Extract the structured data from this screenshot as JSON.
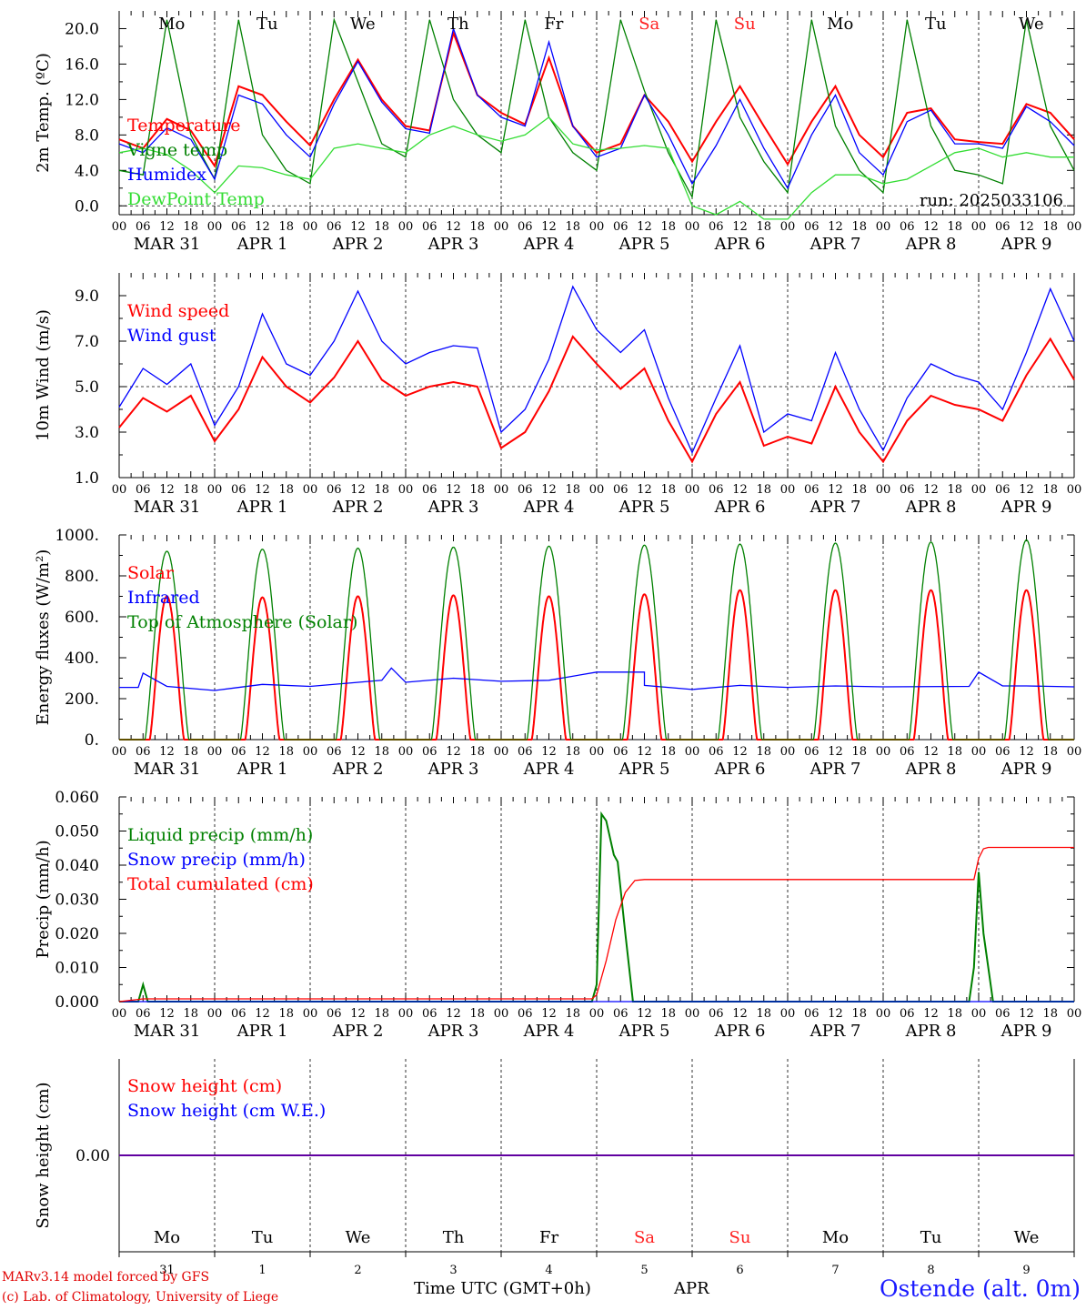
{
  "x_axis": {
    "hour_ticks": [
      "00",
      "06",
      "12",
      "18"
    ],
    "end_tick": "00",
    "date_labels": [
      "MAR 31",
      "APR 1",
      "APR 2",
      "APR 3",
      "APR 4",
      "APR 5",
      "APR 6",
      "APR 7",
      "APR 8",
      "APR 9"
    ],
    "weekdays": [
      "Mo",
      "Tu",
      "We",
      "Th",
      "Fr",
      "Sa",
      "Su",
      "Mo",
      "Tu",
      "We"
    ],
    "day_numbers": [
      "31",
      "1",
      "2",
      "3",
      "4",
      "5",
      "6",
      "7",
      "8",
      "9"
    ],
    "weekend_color": "#ff2020"
  },
  "footer": {
    "credit_line1": "MARv3.14 model forced by GFS",
    "credit_line2": "(c) Lab. of Climatology, University of Liege",
    "time_label": "Time UTC (GMT+0h)",
    "month_label": "APR",
    "station": "Ostende (alt. 0m)"
  },
  "chart_data": [
    {
      "type": "line",
      "ylabel": "2m Temp. (ºC)",
      "ylim": [
        -1,
        22
      ],
      "yticks": [
        0,
        4,
        8,
        12,
        16,
        20
      ],
      "ytick_labels": [
        "0.0",
        "4.0",
        "8.0",
        "12.0",
        "16.0",
        "20.0"
      ],
      "dashed_y": 0,
      "annotation": "run: 2025033106",
      "grid": "vertical dashed lines at day boundaries",
      "legend_position": "left",
      "x_days": [
        0,
        10
      ],
      "series": [
        {
          "name": "Temperature",
          "color": "#ff0000",
          "x": [
            0,
            0.25,
            0.5,
            0.75,
            1,
            1.25,
            1.5,
            1.75,
            2,
            2.25,
            2.5,
            2.75,
            3,
            3.25,
            3.5,
            3.75,
            4,
            4.25,
            4.5,
            4.75,
            5,
            5.25,
            5.5,
            5.75,
            6,
            6.25,
            6.5,
            6.75,
            7,
            7.25,
            7.5,
            7.75,
            8,
            8.25,
            8.5,
            8.75,
            9,
            9.25,
            9.5,
            9.75,
            10
          ],
          "y": [
            7.5,
            6.5,
            9.8,
            8.5,
            4.5,
            13.5,
            12.5,
            9.5,
            6.8,
            12,
            16.5,
            12,
            9,
            8.5,
            19.5,
            12.5,
            10.5,
            9.2,
            16.7,
            9,
            6,
            7,
            12.5,
            9.5,
            5,
            9.5,
            13.5,
            9,
            4.7,
            9.5,
            13.5,
            8,
            5.5,
            10.5,
            11,
            7.5,
            7.2,
            7,
            11.5,
            10.5,
            7.5
          ]
        },
        {
          "name": "Vigne temp",
          "color": "#008000",
          "x": [
            0,
            0.25,
            0.5,
            0.75,
            1,
            1.25,
            1.5,
            1.75,
            2,
            2.25,
            2.5,
            2.75,
            3,
            3.25,
            3.5,
            3.75,
            4,
            4.25,
            4.5,
            4.75,
            5,
            5.25,
            5.5,
            5.75,
            6,
            6.25,
            6.5,
            6.75,
            7,
            7.25,
            7.5,
            7.75,
            8,
            8.25,
            8.5,
            8.75,
            9,
            9.25,
            9.5,
            9.75,
            10
          ],
          "y": [
            4,
            3.5,
            21,
            8,
            3,
            21,
            8,
            4,
            2.5,
            21,
            14,
            7,
            5.5,
            21,
            12,
            8,
            6,
            21,
            10,
            6,
            4,
            21,
            13,
            6,
            1,
            21,
            10,
            5,
            1.5,
            21,
            9,
            4,
            1.5,
            21,
            9,
            4,
            3.5,
            2.5,
            21,
            9,
            4
          ]
        },
        {
          "name": "Humidex",
          "color": "#0000ff",
          "x": [
            0,
            0.25,
            0.5,
            0.75,
            1,
            1.25,
            1.5,
            1.75,
            2,
            2.25,
            2.5,
            2.75,
            3,
            3.25,
            3.5,
            3.75,
            4,
            4.25,
            4.5,
            4.75,
            5,
            5.25,
            5.5,
            5.75,
            6,
            6.25,
            6.5,
            6.75,
            7,
            7.25,
            7.5,
            7.75,
            8,
            8.25,
            8.5,
            8.75,
            9,
            9.25,
            9.5,
            9.75,
            10
          ],
          "y": [
            7,
            6,
            8.8,
            7.5,
            3,
            12.5,
            11.5,
            8,
            5.5,
            11.5,
            16.3,
            11.7,
            8.7,
            8.2,
            20,
            12.5,
            10,
            9,
            18.5,
            9,
            5.5,
            6.5,
            12.5,
            8,
            2.5,
            6.8,
            12,
            6.5,
            2,
            8,
            12.5,
            6,
            3.5,
            9.5,
            10.8,
            7,
            7,
            6.5,
            11.2,
            9.5,
            6.8
          ]
        },
        {
          "name": "DewPoint Temp",
          "color": "#33dd33",
          "x": [
            0,
            0.25,
            0.5,
            0.75,
            1,
            1.25,
            1.5,
            1.75,
            2,
            2.25,
            2.5,
            2.75,
            3,
            3.25,
            3.5,
            3.75,
            4,
            4.25,
            4.5,
            4.75,
            5,
            5.25,
            5.5,
            5.75,
            6,
            6.25,
            6.5,
            6.75,
            7,
            7.25,
            7.5,
            7.75,
            8,
            8.25,
            8.5,
            8.75,
            9,
            9.25,
            9.5,
            9.75,
            10
          ],
          "y": [
            6,
            6.5,
            5.8,
            4,
            1.5,
            4.5,
            4.3,
            3.5,
            3,
            6.5,
            7,
            6.5,
            6,
            8,
            9,
            8,
            7.3,
            8,
            10,
            7,
            6.3,
            6.5,
            6.8,
            6.5,
            0,
            -1,
            0.5,
            -1.5,
            -1.5,
            1.5,
            3.5,
            3.5,
            2.5,
            3,
            4.5,
            6,
            6.5,
            5.5,
            6,
            5.5,
            5.5
          ]
        }
      ]
    },
    {
      "type": "line",
      "ylabel": "10m Wind (m/s)",
      "ylim": [
        1,
        10
      ],
      "yticks": [
        1,
        3,
        5,
        7,
        9
      ],
      "ytick_labels": [
        "1.0",
        "3.0",
        "5.0",
        "7.0",
        "9.0"
      ],
      "dashed_y": 5,
      "legend_position": "left",
      "x_days": [
        0,
        10
      ],
      "series": [
        {
          "name": "Wind speed",
          "color": "#ff0000",
          "x": [
            0,
            0.25,
            0.5,
            0.75,
            1,
            1.25,
            1.5,
            1.75,
            2,
            2.25,
            2.5,
            2.75,
            3,
            3.25,
            3.5,
            3.75,
            4,
            4.25,
            4.5,
            4.75,
            5,
            5.25,
            5.5,
            5.75,
            6,
            6.25,
            6.5,
            6.75,
            7,
            7.25,
            7.5,
            7.75,
            8,
            8.25,
            8.5,
            8.75,
            9,
            9.25,
            9.5,
            9.75,
            10
          ],
          "y": [
            3.2,
            4.5,
            3.9,
            4.6,
            2.6,
            4,
            6.3,
            5,
            4.3,
            5.4,
            7,
            5.3,
            4.6,
            5,
            5.2,
            5,
            2.3,
            3,
            4.8,
            7.2,
            6,
            4.9,
            5.8,
            3.5,
            1.7,
            3.8,
            5.2,
            2.4,
            2.8,
            2.5,
            5,
            3,
            1.7,
            3.5,
            4.6,
            4.2,
            4,
            3.5,
            5.5,
            7.1,
            5.3
          ]
        },
        {
          "name": "Wind gust",
          "color": "#0000ff",
          "x": [
            0,
            0.25,
            0.5,
            0.75,
            1,
            1.25,
            1.5,
            1.75,
            2,
            2.25,
            2.5,
            2.75,
            3,
            3.25,
            3.5,
            3.75,
            4,
            4.25,
            4.5,
            4.75,
            5,
            5.25,
            5.5,
            5.75,
            6,
            6.25,
            6.5,
            6.75,
            7,
            7.25,
            7.5,
            7.75,
            8,
            8.25,
            8.5,
            8.75,
            9,
            9.25,
            9.5,
            9.75,
            10
          ],
          "y": [
            4.1,
            5.8,
            5.1,
            6,
            3.3,
            5,
            8.2,
            6,
            5.5,
            7,
            9.2,
            7,
            6,
            6.5,
            6.8,
            6.7,
            3,
            4,
            6.2,
            9.4,
            7.5,
            6.5,
            7.5,
            4.5,
            2.1,
            4.5,
            6.8,
            3,
            3.8,
            3.5,
            6.5,
            4,
            2.2,
            4.5,
            6,
            5.5,
            5.2,
            4,
            6.5,
            9.3,
            7
          ]
        }
      ]
    },
    {
      "type": "line",
      "ylabel": "Energy fluxes (W/m²)",
      "ylim": [
        0,
        1000
      ],
      "yticks": [
        0,
        200,
        400,
        600,
        800,
        1000
      ],
      "ytick_labels": [
        "0.",
        "200.",
        "400.",
        "600.",
        "800.",
        "1000."
      ],
      "legend_position": "left",
      "x_days": [
        0,
        10
      ],
      "series": [
        {
          "name": "Solar",
          "color": "#ff0000",
          "daily_peaks": [
            700,
            695,
            700,
            705,
            700,
            710,
            730,
            730,
            730,
            730
          ]
        },
        {
          "name": "Infrared",
          "color": "#0000ff",
          "x": [
            0,
            0.2,
            0.25,
            0.5,
            1,
            1.5,
            2,
            2.75,
            2.85,
            3,
            3.5,
            4,
            4.5,
            5,
            5.5,
            5.5,
            6,
            6.5,
            7,
            7.5,
            8,
            8.9,
            9,
            9.25,
            9.5,
            10
          ],
          "y": [
            255,
            255,
            325,
            260,
            240,
            270,
            260,
            290,
            350,
            280,
            300,
            285,
            290,
            330,
            330,
            265,
            245,
            265,
            255,
            262,
            258,
            260,
            330,
            262,
            262,
            258
          ]
        },
        {
          "name": "Top of Atmosphere (Solar)",
          "color": "#008000",
          "daily_peaks": [
            920,
            930,
            935,
            940,
            945,
            950,
            955,
            960,
            965,
            975
          ]
        }
      ]
    },
    {
      "type": "line",
      "ylabel": "Precip (mm/h)",
      "ylim": [
        0,
        0.06
      ],
      "yticks": [
        0,
        0.01,
        0.02,
        0.03,
        0.04,
        0.05,
        0.06
      ],
      "ytick_labels": [
        "0.000",
        "0.010",
        "0.020",
        "0.030",
        "0.040",
        "0.050",
        "0.060"
      ],
      "legend_position": "left",
      "x_days": [
        0,
        10
      ],
      "series": [
        {
          "name": "Liquid precip (mm/h)",
          "color": "#008000",
          "x": [
            0,
            0.2,
            0.25,
            0.3,
            4.95,
            5.0,
            5.05,
            5.1,
            5.18,
            5.22,
            5.3,
            5.38,
            5.45,
            8.9,
            8.95,
            9.0,
            9.05,
            9.15,
            10
          ],
          "y": [
            0,
            0,
            0.005,
            0,
            0,
            0.005,
            0.055,
            0.053,
            0.043,
            0.041,
            0.02,
            0,
            0,
            0,
            0.01,
            0.038,
            0.02,
            0,
            0
          ]
        },
        {
          "name": "Snow precip (mm/h)",
          "color": "#0000ff",
          "x": [
            0,
            10
          ],
          "y": [
            0,
            0
          ]
        },
        {
          "name": "Total cumulated (cm)",
          "color": "#ff0000",
          "x": [
            0,
            0.25,
            4.95,
            5.0,
            5.1,
            5.2,
            5.3,
            5.4,
            5.5,
            8.95,
            9.0,
            9.05,
            9.1,
            10
          ],
          "y": [
            0,
            0.0008,
            0.0008,
            0.002,
            0.012,
            0.024,
            0.032,
            0.0355,
            0.0358,
            0.0358,
            0.042,
            0.0448,
            0.0452,
            0.0452
          ]
        }
      ]
    },
    {
      "type": "line",
      "ylabel": "Snow height (cm)",
      "ytick_labels": [
        "0.00"
      ],
      "legend_position": "left",
      "x_days": [
        0,
        10
      ],
      "series": [
        {
          "name": "Snow height (cm)",
          "color": "#ff0000",
          "x": [
            0,
            10
          ],
          "y": [
            0,
            0
          ]
        },
        {
          "name": "Snow height (cm W.E.)",
          "color": "#0000ff",
          "x": [
            0,
            10
          ],
          "y": [
            0,
            0
          ]
        }
      ]
    }
  ]
}
